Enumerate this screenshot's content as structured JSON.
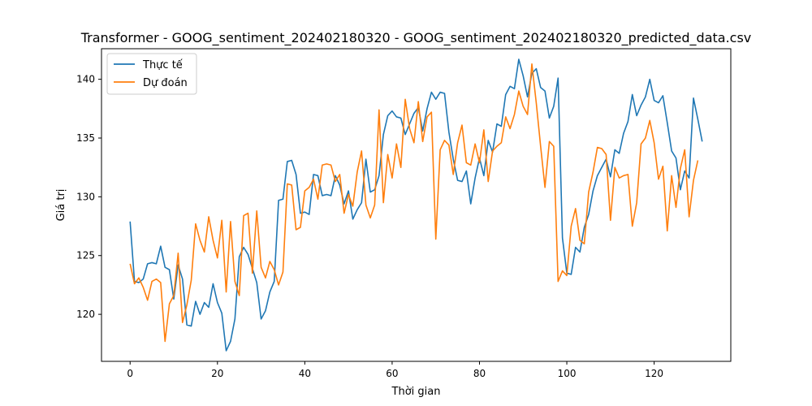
{
  "chart_data": {
    "type": "line",
    "title": "Transformer - GOOG_sentiment_202402180320 - GOOG_sentiment_202402180320_predicted_data.csv",
    "xlabel": "Thời gian",
    "ylabel": "Giá trị",
    "xlim": [
      -6.55,
      137.55
    ],
    "ylim": [
      116.0,
      142.6
    ],
    "xticks": [
      0,
      20,
      40,
      60,
      80,
      100,
      120
    ],
    "yticks": [
      120,
      125,
      130,
      135,
      140
    ],
    "grid": false,
    "legend_position": "top-left",
    "series": [
      {
        "name": "Thực tế",
        "color": "#1f77b4",
        "values": [
          127.9,
          122.8,
          122.7,
          123.0,
          124.3,
          124.4,
          124.3,
          125.8,
          124.0,
          123.8,
          121.3,
          124.2,
          123.0,
          119.1,
          119.0,
          121.1,
          120.0,
          121.0,
          120.6,
          122.6,
          121.0,
          120.1,
          116.9,
          117.7,
          119.6,
          124.9,
          125.7,
          125.1,
          123.9,
          122.7,
          119.6,
          120.3,
          121.9,
          122.8,
          129.7,
          129.8,
          133.0,
          133.1,
          131.9,
          128.6,
          128.7,
          128.5,
          131.9,
          131.8,
          130.1,
          130.2,
          130.1,
          131.8,
          131.0,
          129.4,
          130.5,
          128.1,
          128.9,
          129.5,
          133.2,
          130.4,
          130.6,
          131.8,
          135.3,
          136.9,
          137.3,
          136.8,
          136.7,
          135.3,
          136.2,
          137.1,
          137.6,
          135.6,
          137.5,
          138.9,
          138.3,
          138.9,
          138.8,
          135.5,
          133.2,
          131.4,
          131.3,
          132.2,
          129.4,
          131.6,
          133.3,
          131.8,
          134.8,
          133.8,
          136.2,
          136.0,
          138.7,
          139.4,
          139.2,
          141.7,
          140.3,
          138.5,
          140.5,
          140.9,
          139.3,
          139.0,
          136.7,
          137.7,
          140.1,
          126.5,
          123.5,
          123.4,
          125.7,
          125.3,
          127.4,
          128.5,
          130.5,
          131.8,
          132.5,
          133.2,
          131.7,
          134.0,
          133.7,
          135.4,
          136.4,
          138.7,
          136.9,
          137.8,
          138.5,
          140.0,
          138.2,
          138.0,
          138.6,
          136.3,
          133.9,
          133.3,
          130.6,
          132.2,
          131.6,
          138.4,
          136.6,
          134.7
        ]
      },
      {
        "name": "Dự đoán",
        "color": "#ff7f0e",
        "values": [
          124.3,
          122.6,
          123.1,
          122.3,
          121.2,
          122.8,
          123.0,
          122.7,
          117.7,
          120.9,
          121.6,
          125.2,
          119.3,
          120.8,
          122.9,
          127.7,
          126.3,
          125.3,
          128.3,
          126.3,
          124.8,
          128.0,
          121.9,
          127.9,
          122.8,
          121.6,
          128.4,
          128.6,
          123.5,
          128.8,
          124.0,
          123.1,
          124.5,
          123.8,
          122.5,
          123.6,
          131.1,
          131.0,
          127.2,
          127.4,
          130.5,
          130.8,
          131.5,
          129.8,
          132.7,
          132.8,
          132.7,
          131.3,
          131.9,
          128.6,
          130.2,
          129.2,
          132.1,
          133.9,
          129.3,
          128.2,
          129.3,
          137.4,
          129.5,
          133.6,
          131.6,
          134.5,
          132.5,
          138.3,
          135.8,
          134.6,
          138.1,
          134.7,
          136.8,
          137.2,
          126.4,
          134.0,
          134.8,
          134.4,
          131.9,
          134.6,
          136.1,
          132.9,
          132.7,
          134.5,
          132.9,
          135.7,
          131.3,
          133.9,
          134.3,
          134.6,
          136.8,
          135.8,
          137.0,
          139.0,
          137.7,
          137.0,
          141.3,
          138.0,
          134.3,
          130.8,
          134.7,
          134.3,
          122.8,
          123.7,
          123.3,
          127.5,
          129.0,
          126.3,
          126.0,
          130.4,
          132.1,
          134.2,
          134.1,
          133.6,
          128.0,
          132.5,
          131.6,
          131.8,
          131.9,
          127.5,
          129.5,
          134.5,
          135.0,
          136.5,
          134.6,
          131.5,
          132.6,
          127.1,
          131.8,
          129.1,
          132.4,
          134.0,
          128.3,
          131.4,
          133.1
        ]
      }
    ]
  }
}
